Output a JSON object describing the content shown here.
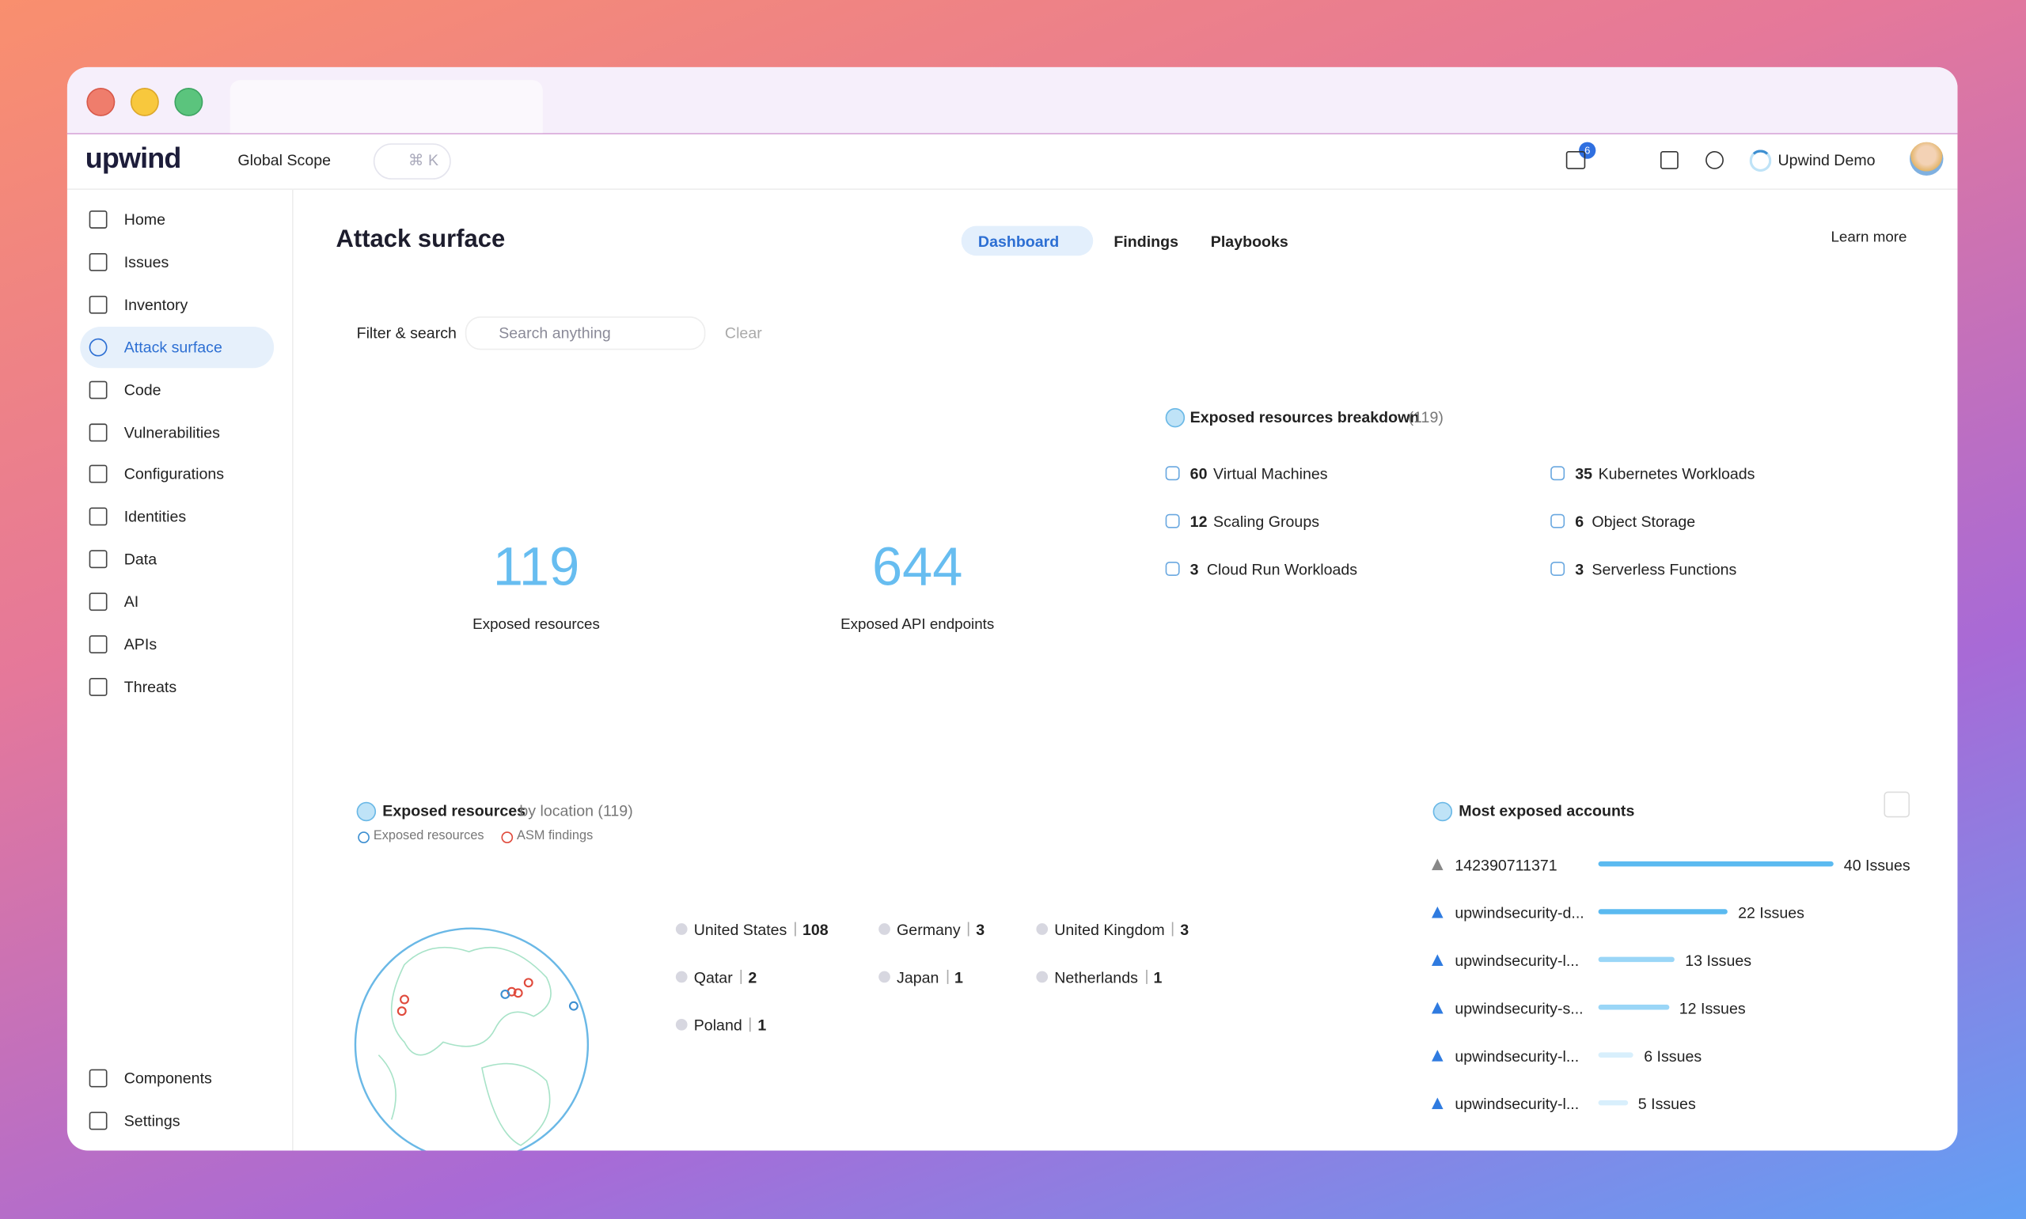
{
  "header": {
    "logo": "upwind",
    "scope": "Global Scope",
    "search_shortcut": "⌘ K",
    "notification_count": 6,
    "user": "Upwind Demo"
  },
  "sidebar": {
    "items": [
      "Home",
      "Issues",
      "Inventory",
      "Attack surface",
      "Code",
      "Vulnerabilities",
      "Configurations",
      "Identities",
      "Data",
      "AI",
      "APIs",
      "Threats"
    ],
    "bottom_items": [
      "Components",
      "Settings"
    ]
  },
  "page": {
    "title": "Attack surface",
    "tabs": [
      "Dashboard",
      "Findings",
      "Playbooks"
    ],
    "learn_more": "Learn more",
    "filter": "Filter & search",
    "search_placeholder": "Search anything",
    "clear": "Clear"
  },
  "stats": [
    {
      "value": 119,
      "label": "Exposed resources"
    },
    {
      "value": 644,
      "label": "Exposed API endpoints"
    }
  ],
  "breakdown": {
    "title": "Exposed resources breakdown",
    "total": "(119)",
    "items": [
      {
        "count": 60,
        "label": "Virtual Machines"
      },
      {
        "count": 12,
        "label": "Scaling Groups"
      },
      {
        "count": 3,
        "label": "Cloud Run Workloads"
      },
      {
        "count": 35,
        "label": "Kubernetes Workloads"
      },
      {
        "count": 6,
        "label": "Object Storage"
      },
      {
        "count": 3,
        "label": "Serverless Functions"
      }
    ]
  },
  "location": {
    "title": "Exposed resources",
    "title_suffix": "by location (119)",
    "legend": [
      "Exposed resources",
      "ASM findings"
    ],
    "countries": [
      {
        "name": "United States",
        "count": 108
      },
      {
        "name": "Germany",
        "count": 3
      },
      {
        "name": "United Kingdom",
        "count": 3
      },
      {
        "name": "Qatar",
        "count": 2
      },
      {
        "name": "Japan",
        "count": 1
      },
      {
        "name": "Netherlands",
        "count": 1
      },
      {
        "name": "Poland",
        "count": 1
      }
    ]
  },
  "accounts": {
    "title": "Most exposed accounts",
    "rows": [
      {
        "name": "142390711371",
        "value": 40,
        "value_label": "40 Issues"
      },
      {
        "name": "upwindsecurity-d...",
        "value": 22,
        "value_label": "22 Issues"
      },
      {
        "name": "upwindsecurity-l...",
        "value": 13,
        "value_label": "13 Issues"
      },
      {
        "name": "upwindsecurity-s...",
        "value": 12,
        "value_label": "12 Issues"
      },
      {
        "name": "upwindsecurity-l...",
        "value": 6,
        "value_label": "6 Issues"
      },
      {
        "name": "upwindsecurity-l...",
        "value": 5,
        "value_label": "5 Issues"
      }
    ]
  }
}
